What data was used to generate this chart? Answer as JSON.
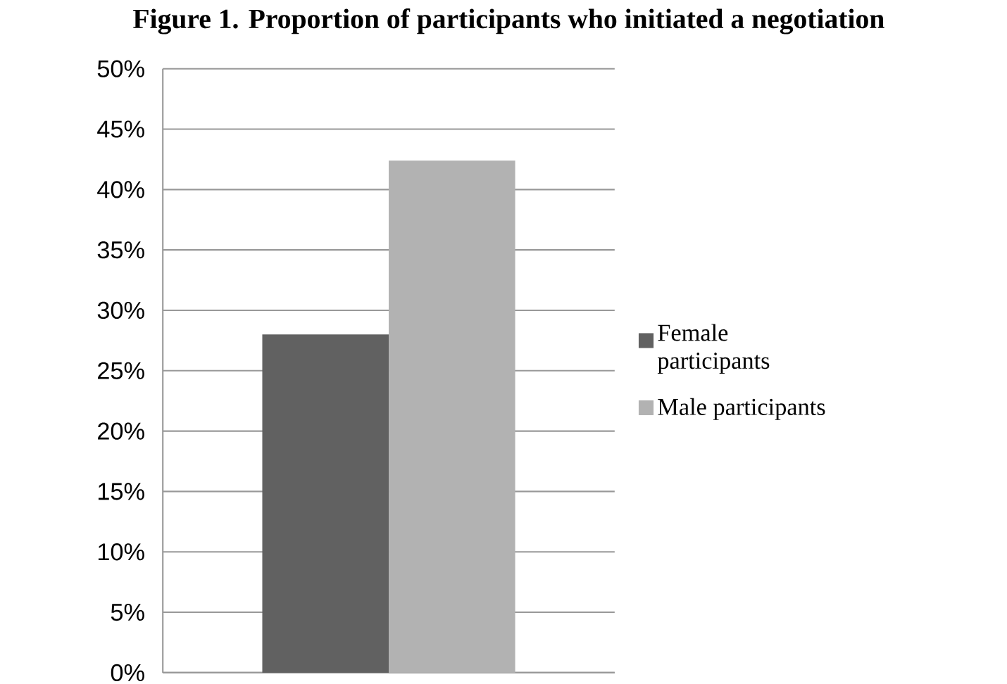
{
  "chart_data": {
    "type": "bar",
    "title": "Figure 1. Proportion of participants who initiated a negotiation",
    "categories": [
      null
    ],
    "series": [
      {
        "name": "Female participants",
        "color": "#616161",
        "values": [
          28.0
        ]
      },
      {
        "name": "Male participants",
        "color": "#b2b2b2",
        "values": [
          42.4
        ]
      }
    ],
    "ylim": [
      0,
      50
    ],
    "yticks": [
      {
        "value": 0,
        "label": "0%"
      },
      {
        "value": 5,
        "label": "5%"
      },
      {
        "value": 10,
        "label": "10%"
      },
      {
        "value": 15,
        "label": "15%"
      },
      {
        "value": 20,
        "label": "20%"
      },
      {
        "value": 25,
        "label": "25%"
      },
      {
        "value": 30,
        "label": "30%"
      },
      {
        "value": 35,
        "label": "35%"
      },
      {
        "value": 40,
        "label": "40%"
      },
      {
        "value": 45,
        "label": "45%"
      },
      {
        "value": 50,
        "label": "50%"
      }
    ],
    "grid": "y",
    "legend": "right"
  }
}
